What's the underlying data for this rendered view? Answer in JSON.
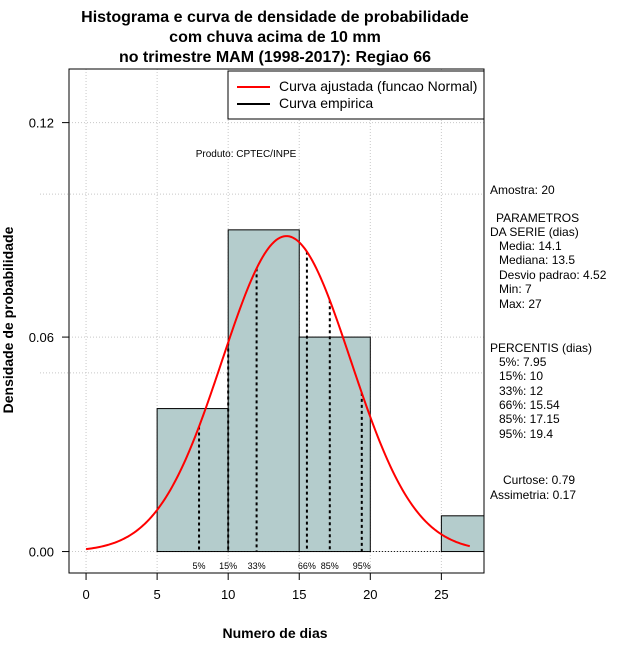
{
  "chart_data": {
    "type": "bar",
    "title_lines": [
      "Histograma e curva de densidade de probabilidade",
      "com chuva acima de 10 mm",
      "no trimestre MAM (1998-2017): Regiao 66"
    ],
    "xlabel": "Numero de dias",
    "ylabel": "Densidade de probabilidade",
    "xlim": [
      -1.2,
      28
    ],
    "ylim": [
      -0.006,
      0.135
    ],
    "xticks": [
      0,
      5,
      10,
      15,
      20,
      25
    ],
    "yticks": [
      0.0,
      0.06,
      0.12
    ],
    "ytick_labels": [
      "0.00",
      "0.06",
      "0.12"
    ],
    "grid_x": [
      0,
      5,
      10,
      15,
      20,
      25
    ],
    "grid_y": [
      0.0,
      0.06,
      0.12
    ],
    "grid_y_partial": [
      0.1,
      0.05
    ],
    "bins": [
      {
        "start": 5,
        "end": 10,
        "density": 0.04
      },
      {
        "start": 10,
        "end": 15,
        "density": 0.09
      },
      {
        "start": 15,
        "end": 20,
        "density": 0.06
      },
      {
        "start": 20,
        "end": 25,
        "density": 0.0
      },
      {
        "start": 25,
        "end": 28,
        "density": 0.01
      }
    ],
    "normal_fit": {
      "mean": 14.1,
      "sd": 4.52,
      "x_start": 0,
      "x_end": 27,
      "color": "#ff0000"
    },
    "bar_color": "#b4cccc",
    "percentiles": [
      {
        "label": "5%",
        "value": 7.95
      },
      {
        "label": "15%",
        "value": 10
      },
      {
        "label": "33%",
        "value": 12
      },
      {
        "label": "66%",
        "value": 15.54
      },
      {
        "label": "85%",
        "value": 17.15
      },
      {
        "label": "95%",
        "value": 19.4
      }
    ],
    "legend": [
      {
        "label": "Curva ajustada (funcao Normal)",
        "color": "#ff0000"
      },
      {
        "label": "Curva empirica",
        "color": "#000000"
      }
    ],
    "legend_position": "top-right",
    "product_label": "Produto: CPTEC/INPE",
    "stats": {
      "amostra": "Amostra: 20",
      "params_title_1": "PARAMETROS",
      "params_title_2": "DA SERIE (dias)",
      "params": [
        "Media: 14.1",
        "Mediana: 13.5",
        "Desvio padrao: 4.52",
        "Min: 7",
        "Max: 27"
      ],
      "percentis_title": "PERCENTIS (dias)",
      "percentis": [
        "5%: 7.95",
        "15%: 10",
        "33%: 12",
        "66%: 15.54",
        "85%: 17.15",
        "95%: 19.4"
      ],
      "curtose": "Curtose: 0.79",
      "assimetria": "Assimetria: 0.17"
    }
  }
}
